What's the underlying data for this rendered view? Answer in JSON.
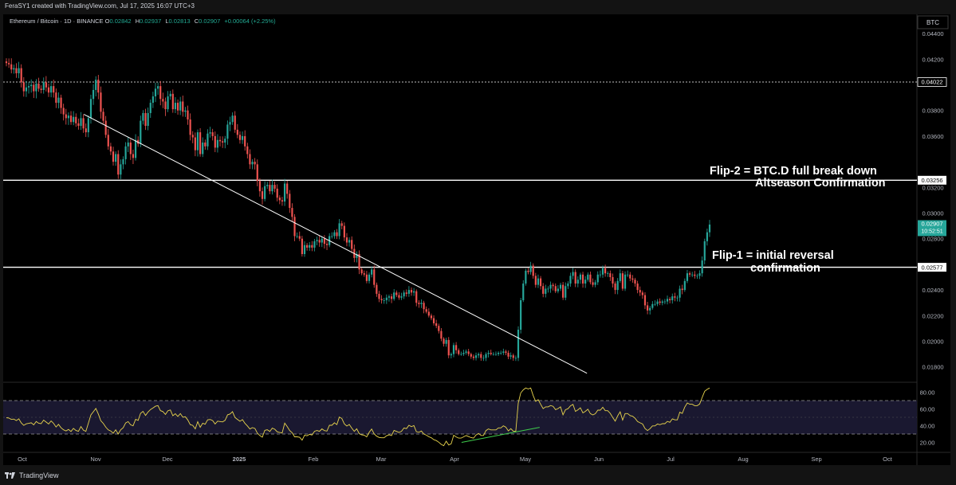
{
  "header": {
    "attribution": "FeraSY1 created with TradingView.com, Jul 17, 2025 16:07 UTC+3"
  },
  "legend": {
    "symbol": "Ethereum / Bitcoin · 1D · BINANCE",
    "open_key": "O",
    "open": "0.02842",
    "high_key": "H",
    "high": "0.02937",
    "low_key": "L",
    "low": "0.02813",
    "close_key": "C",
    "close": "0.02907",
    "change": "+0.00064 (+2.25%)"
  },
  "currency_label": "BTC",
  "footer": {
    "brand": "TradingView"
  },
  "colors": {
    "up": "#26a69a",
    "down": "#ef5350",
    "rsi_line": "#e8d44d",
    "rsi_band": "#1a1830",
    "annotation": "#ffffff",
    "divergence": "#3fcf4c",
    "last_price_bg": "#26a69a"
  },
  "annotations": {
    "flip2_line1": "Flip-2   = BTC.D full break down",
    "flip2_line2": "Altseason Confirmation",
    "flip1_line1": "Flip-1 = initial reversal",
    "flip1_line2": "confirmation"
  },
  "price_labels": {
    "level_top": "0.04022",
    "level_flip2": "0.03256",
    "level_flip1": "0.02577",
    "last_price": "0.02907",
    "countdown": "10:52:51"
  },
  "chart_data": {
    "type": "candlestick",
    "main_ylim": [
      0.0168,
      0.0455
    ],
    "y_ticks": [
      "0.04400",
      "0.04200",
      "0.03800",
      "0.03600",
      "0.03200",
      "0.03000",
      "0.02800",
      "0.02400",
      "0.02200",
      "0.02000",
      "0.01800"
    ],
    "x_ticks": [
      "Oct",
      "Nov",
      "Dec",
      "2025",
      "Feb",
      "Mar",
      "Apr",
      "May",
      "Jun",
      "Jul",
      "Aug",
      "Sep",
      "Oct"
    ],
    "horizontal_levels": [
      0.04022,
      0.03256,
      0.02577
    ],
    "trendline": {
      "from": [
        "Oct 27",
        0.0377
      ],
      "to": [
        "May 27",
        0.0175
      ]
    },
    "close_series": [
      0.0417,
      0.0416,
      0.0412,
      0.0413,
      0.0409,
      0.0413,
      0.0402,
      0.0395,
      0.0398,
      0.0399,
      0.04,
      0.0395,
      0.0401,
      0.0397,
      0.0396,
      0.0402,
      0.0398,
      0.0394,
      0.0399,
      0.0394,
      0.0386,
      0.039,
      0.0382,
      0.0377,
      0.0374,
      0.0376,
      0.0371,
      0.0375,
      0.037,
      0.0368,
      0.0374,
      0.0366,
      0.0363,
      0.0374,
      0.0389,
      0.0396,
      0.0404,
      0.0394,
      0.0379,
      0.0372,
      0.0361,
      0.0352,
      0.0348,
      0.034,
      0.0346,
      0.033,
      0.0338,
      0.0342,
      0.0352,
      0.0355,
      0.0346,
      0.0343,
      0.0357,
      0.0354,
      0.0372,
      0.0378,
      0.0368,
      0.0378,
      0.0386,
      0.0391,
      0.0397,
      0.0399,
      0.0389,
      0.0387,
      0.0381,
      0.0391,
      0.0393,
      0.0381,
      0.0386,
      0.038,
      0.0387,
      0.0379,
      0.038,
      0.0373,
      0.0361,
      0.0359,
      0.0349,
      0.0363,
      0.0346,
      0.0355,
      0.0352,
      0.0362,
      0.0363,
      0.036,
      0.0351,
      0.0357,
      0.0356,
      0.0355,
      0.0358,
      0.0369,
      0.0371,
      0.0376,
      0.0365,
      0.0361,
      0.0357,
      0.036,
      0.0352,
      0.0346,
      0.0338,
      0.034,
      0.0338,
      0.0325,
      0.0317,
      0.0311,
      0.0321,
      0.0322,
      0.0317,
      0.0322,
      0.0319,
      0.0312,
      0.031,
      0.0309,
      0.0323,
      0.0315,
      0.0304,
      0.0297,
      0.0282,
      0.0282,
      0.028,
      0.0268,
      0.0275,
      0.0273,
      0.0275,
      0.0273,
      0.0278,
      0.0279,
      0.0277,
      0.028,
      0.0276,
      0.0275,
      0.0282,
      0.0282,
      0.0285,
      0.0282,
      0.0292,
      0.029,
      0.0281,
      0.0277,
      0.0279,
      0.0272,
      0.0265,
      0.0268,
      0.0256,
      0.0253,
      0.0252,
      0.0247,
      0.0252,
      0.0256,
      0.0244,
      0.0237,
      0.0233,
      0.0232,
      0.0232,
      0.0234,
      0.0235,
      0.0233,
      0.0238,
      0.0236,
      0.0234,
      0.0235,
      0.0238,
      0.0237,
      0.024,
      0.0238,
      0.0239,
      0.023,
      0.0229,
      0.023,
      0.0225,
      0.0223,
      0.022,
      0.0218,
      0.0214,
      0.0212,
      0.0208,
      0.0202,
      0.0198,
      0.0201,
      0.0189,
      0.019,
      0.0197,
      0.0193,
      0.019,
      0.019,
      0.0191,
      0.0192,
      0.019,
      0.0188,
      0.0187,
      0.0189,
      0.019,
      0.0187,
      0.0187,
      0.019,
      0.0191,
      0.019,
      0.019,
      0.019,
      0.0191,
      0.0191,
      0.0192,
      0.0191,
      0.0188,
      0.0189,
      0.0187,
      0.0187,
      0.0209,
      0.0232,
      0.0245,
      0.0255,
      0.0254,
      0.0259,
      0.0251,
      0.0244,
      0.0249,
      0.0243,
      0.0237,
      0.0241,
      0.0241,
      0.0244,
      0.0243,
      0.0239,
      0.0241,
      0.0244,
      0.0234,
      0.0243,
      0.0245,
      0.0251,
      0.0254,
      0.0245,
      0.0248,
      0.0252,
      0.0245,
      0.0248,
      0.0252,
      0.0246,
      0.0244,
      0.0246,
      0.0252,
      0.0252,
      0.0257,
      0.0253,
      0.0253,
      0.025,
      0.0245,
      0.024,
      0.0247,
      0.0253,
      0.0241,
      0.0252,
      0.0252,
      0.0249,
      0.0248,
      0.0245,
      0.024,
      0.0238,
      0.0236,
      0.0228,
      0.0224,
      0.0226,
      0.0229,
      0.0229,
      0.0231,
      0.023,
      0.0231,
      0.0231,
      0.0233,
      0.0232,
      0.0235,
      0.0234,
      0.0234,
      0.0241,
      0.024,
      0.0247,
      0.0253,
      0.0252,
      0.0252,
      0.0251,
      0.0251,
      0.0253,
      0.0263,
      0.0278,
      0.0285,
      0.0291
    ],
    "rsi": {
      "name": "RSI",
      "ylim": [
        10,
        90
      ],
      "band": [
        30,
        70
      ],
      "y_ticks": [
        "80.00",
        "60.00",
        "40.00",
        "20.00"
      ],
      "divergence_line": {
        "from": [
          "Apr 4",
          20
        ],
        "to": [
          "May 7",
          38
        ]
      }
    }
  }
}
